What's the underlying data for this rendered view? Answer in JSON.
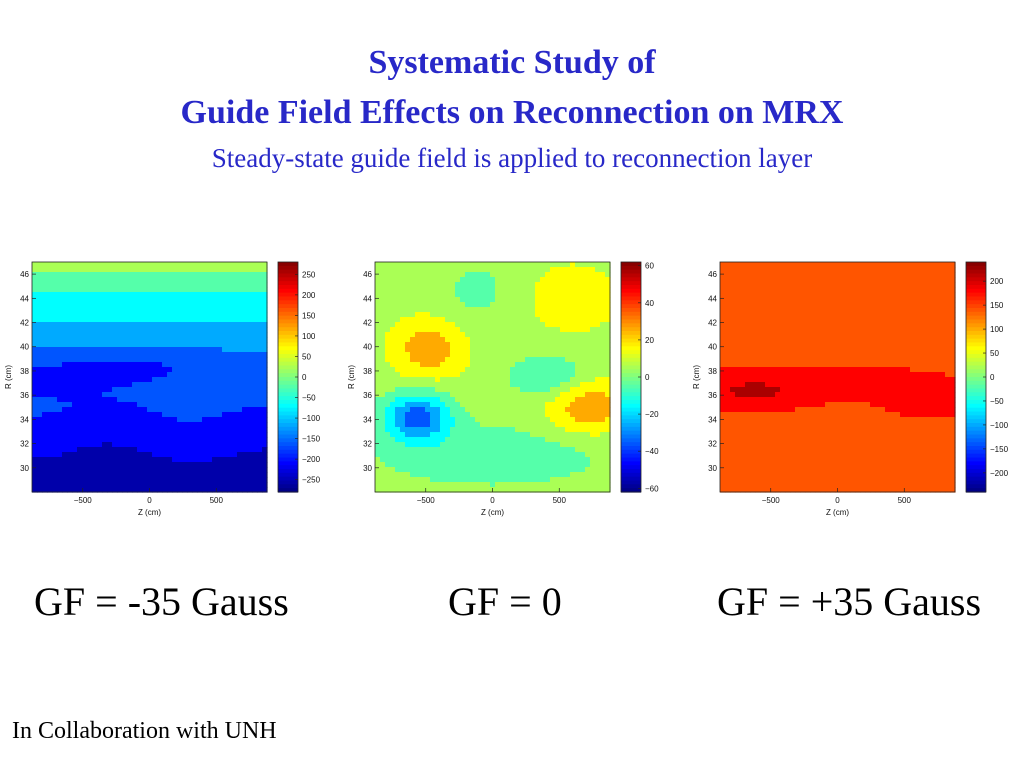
{
  "slide": {
    "title_line1": "Systematic Study of",
    "title_line2": "Guide Field Effects on Reconnection on MRX",
    "subtitle": "Steady-state guide field is applied to reconnection layer",
    "footer": "In Collaboration with UNH"
  },
  "colors": {
    "title": "#2828c8",
    "jet": [
      "#00008f",
      "#0000ff",
      "#007fff",
      "#00ffff",
      "#7fff7f",
      "#ffff00",
      "#ff7f00",
      "#ff0000",
      "#7f0000"
    ]
  },
  "chart_data": [
    {
      "type": "heatmap",
      "caption": "GF = -35 Gauss",
      "xlabel": "Z (cm)",
      "ylabel": "R (cm)",
      "x_ticks": [
        "−500",
        "0",
        "500"
      ],
      "y_ticks": [
        "46",
        "44",
        "42",
        "40",
        "38",
        "36",
        "34",
        "32",
        "30"
      ],
      "colorbar_ticks": [
        "250",
        "200",
        "150",
        "100",
        "50",
        "0",
        "−50",
        "−100",
        "−150",
        "−200",
        "−250"
      ],
      "clim": [
        -280,
        280
      ],
      "xlim": [
        -880,
        880
      ],
      "ylim": [
        28,
        47
      ],
      "dominant_range": [
        -230,
        -20
      ]
    },
    {
      "type": "heatmap",
      "caption": "GF = 0",
      "xlabel": "Z (cm)",
      "ylabel": "R (cm)",
      "x_ticks": [
        "−500",
        "0",
        "500"
      ],
      "y_ticks": [
        "46",
        "44",
        "42",
        "40",
        "38",
        "36",
        "34",
        "32",
        "30"
      ],
      "colorbar_ticks": [
        "60",
        "40",
        "20",
        "0",
        "−20",
        "−40",
        "−60"
      ],
      "clim": [
        -62,
        62
      ],
      "xlim": [
        -880,
        880
      ],
      "ylim": [
        28,
        47
      ],
      "dominant_range": [
        -55,
        35
      ]
    },
    {
      "type": "heatmap",
      "caption": "GF = +35 Gauss",
      "xlabel": "Z (cm)",
      "ylabel": "R (cm)",
      "x_ticks": [
        "−500",
        "0",
        "500"
      ],
      "y_ticks": [
        "46",
        "44",
        "42",
        "40",
        "38",
        "36",
        "34",
        "32",
        "30"
      ],
      "colorbar_ticks": [
        "200",
        "150",
        "100",
        "50",
        "0",
        "−50",
        "−100",
        "−150",
        "−200"
      ],
      "clim": [
        -240,
        240
      ],
      "xlim": [
        -880,
        880
      ],
      "ylim": [
        28,
        47
      ],
      "dominant_range": [
        110,
        200
      ]
    }
  ]
}
